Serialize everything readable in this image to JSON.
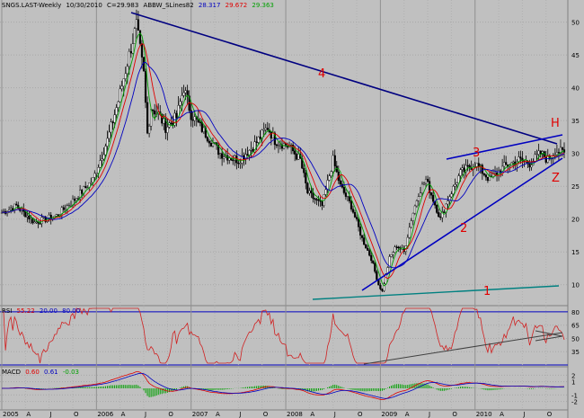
{
  "header": {
    "symbol": "SNGS.LAST-Weekly",
    "date": "10/30/2010",
    "close": "C=29.983",
    "ind": "ABBW_SLines82",
    "v1": "28.317",
    "v2": "29.672",
    "v3": "29.363"
  },
  "rsi_header": {
    "name": "RSI",
    "value": "55.22",
    "low": "20.00",
    "high": "80.00"
  },
  "macd_header": {
    "name": "MACD",
    "v1": "0.60",
    "v2": "0.61",
    "v3": "-0.03"
  },
  "colors": {
    "background": "#c0c0c0",
    "candle": "#000000",
    "trend": "#000080",
    "ma_green": "#00a000",
    "ma_red": "#e00000",
    "ma_blue": "#0000c0",
    "rsi": "#d02020",
    "label": "#e00000"
  },
  "annotations": [
    "1",
    "2",
    "3",
    "4",
    "H",
    "Z"
  ],
  "chart_data": {
    "type": "candlestick",
    "price_axis": {
      "ylim": [
        7.5,
        52
      ],
      "ticks": [
        10,
        15,
        20,
        25,
        30,
        35,
        40,
        45,
        50
      ]
    },
    "rsi_axis": {
      "ylim": [
        20,
        85
      ],
      "ticks": [
        35,
        50,
        65,
        80
      ]
    },
    "macd_axis": {
      "ylim": [
        -3,
        3
      ],
      "ticks": [
        -2,
        -1,
        1,
        2
      ]
    },
    "x_labels": [
      "2005",
      "A",
      "J",
      "O",
      "2006",
      "A",
      "J",
      "O",
      "2007",
      "A",
      "J",
      "O",
      "2008",
      "A",
      "J",
      "O",
      "2009",
      "A",
      "J",
      "O",
      "2010",
      "A",
      "J",
      "O"
    ],
    "price_path": [
      [
        0,
        21
      ],
      [
        8,
        22
      ],
      [
        18,
        19.5
      ],
      [
        30,
        20.5
      ],
      [
        40,
        23
      ],
      [
        50,
        26
      ],
      [
        58,
        32
      ],
      [
        64,
        38
      ],
      [
        70,
        45
      ],
      [
        74,
        49.5
      ],
      [
        78,
        42
      ],
      [
        80,
        33
      ],
      [
        82,
        37
      ],
      [
        86,
        36
      ],
      [
        90,
        34
      ],
      [
        96,
        35.5
      ],
      [
        100,
        40
      ],
      [
        104,
        36
      ],
      [
        112,
        33
      ],
      [
        120,
        30
      ],
      [
        130,
        29
      ],
      [
        138,
        31
      ],
      [
        146,
        34
      ],
      [
        150,
        32
      ],
      [
        158,
        31
      ],
      [
        164,
        29
      ],
      [
        168,
        24
      ],
      [
        176,
        22
      ],
      [
        182,
        29
      ],
      [
        186,
        25
      ],
      [
        192,
        22
      ],
      [
        198,
        17
      ],
      [
        203,
        14
      ],
      [
        207,
        10
      ],
      [
        209,
        9
      ],
      [
        213,
        14
      ],
      [
        217,
        16
      ],
      [
        221,
        15
      ],
      [
        225,
        20
      ],
      [
        229,
        24
      ],
      [
        233,
        26
      ],
      [
        237,
        23
      ],
      [
        241,
        20
      ],
      [
        245,
        23
      ],
      [
        252,
        27
      ],
      [
        260,
        28.5
      ],
      [
        268,
        26
      ],
      [
        276,
        28
      ],
      [
        284,
        29
      ],
      [
        290,
        28.5
      ],
      [
        296,
        30
      ],
      [
        300,
        29
      ],
      [
        304,
        30.5
      ],
      [
        309,
        30
      ]
    ],
    "n_weeks": 310,
    "levels": {
      "rsi_low": 20,
      "rsi_high": 80
    }
  }
}
